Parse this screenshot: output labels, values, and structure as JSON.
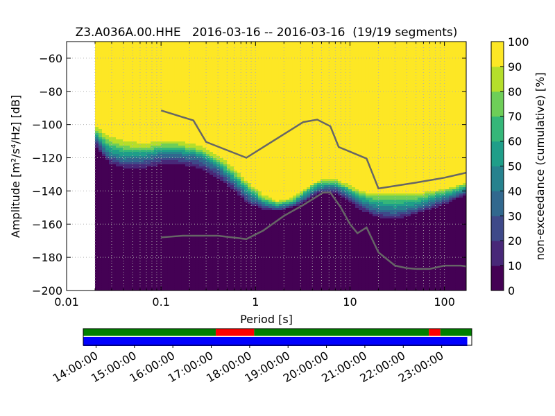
{
  "chart_data": [
    {
      "type": "heatmap",
      "title": "Z3.A036A.00.HHE   2016-03-16 -- 2016-03-16  (19/19 segments)",
      "xlabel": "Period [s]",
      "ylabel": "Amplitude [m²/s⁴/Hz] [dB]",
      "x_scale": "log",
      "xlim": [
        0.01,
        170
      ],
      "ylim": [
        -200,
        -50
      ],
      "x_ticks": [
        0.01,
        0.1,
        1,
        10,
        100
      ],
      "x_tick_labels": [
        "0.01",
        "0.1",
        "1",
        "10",
        "100"
      ],
      "y_ticks": [
        -60,
        -80,
        -100,
        -120,
        -140,
        -160,
        -180,
        -200
      ],
      "y_tick_labels": [
        "−60",
        "−80",
        "−100",
        "−120",
        "−140",
        "−160",
        "−180",
        "−200"
      ],
      "grid": true,
      "data_start_period": 0.02,
      "colormap": [
        "#440154",
        "#482878",
        "#3e4989",
        "#31688e",
        "#26828e",
        "#1f9e89",
        "#35b779",
        "#6ece58",
        "#b5de2b",
        "#fde725"
      ],
      "colorbar": {
        "label": "non-exceedance (cumulative) [%]",
        "ticks": [
          0,
          10,
          20,
          30,
          40,
          50,
          60,
          70,
          80,
          90,
          100
        ],
        "range": [
          0,
          100
        ]
      },
      "psd_contours": [
        {
          "period": [
            0.02,
            0.028,
            0.04,
            0.07,
            0.1,
            0.15,
            0.25,
            0.4,
            0.6,
            0.85,
            1.2,
            1.7,
            2.5,
            3.5,
            4.5,
            5.5,
            7,
            9,
            12,
            16,
            20,
            30,
            50,
            80,
            120,
            170
          ],
          "p99": [
            -99,
            -104,
            -107,
            -109,
            -108,
            -108,
            -110,
            -116,
            -125,
            -134,
            -141,
            -145,
            -143,
            -137,
            -133,
            -132,
            -132,
            -134,
            -138,
            -140,
            -140,
            -140,
            -140,
            -139,
            -137,
            -134
          ],
          "p80": [
            -103,
            -110,
            -113,
            -114,
            -112,
            -112,
            -115,
            -121,
            -129,
            -137,
            -144,
            -147,
            -145,
            -139,
            -135,
            -134,
            -134,
            -137,
            -141,
            -143,
            -143,
            -143,
            -143,
            -141,
            -139,
            -136
          ],
          "p40": [
            -108,
            -118,
            -121,
            -120,
            -118,
            -118,
            -120,
            -126,
            -135,
            -143,
            -148,
            -150,
            -148,
            -143,
            -139,
            -138,
            -138,
            -141,
            -145,
            -149,
            -151,
            -152,
            -150,
            -146,
            -143,
            -140
          ],
          "p10": [
            -112,
            -123,
            -126,
            -126,
            -124,
            -124,
            -126,
            -132,
            -140,
            -148,
            -151,
            -152,
            -150,
            -146,
            -142,
            -141,
            -141,
            -145,
            -150,
            -154,
            -156,
            -157,
            -154,
            -150,
            -146,
            -142
          ],
          "p3": [
            -140,
            -150,
            -156,
            -157,
            -157,
            -157,
            -157,
            -157,
            -157,
            -157,
            -157,
            -157,
            -156,
            -155,
            -155,
            -154,
            -154,
            -156,
            -158,
            -158,
            -158,
            -158,
            -158,
            -158,
            -158,
            -158
          ]
        }
      ],
      "series": [
        {
          "name": "",
          "x": [
            0.1,
            0.22,
            0.3,
            0.8,
            3.2,
            4.5,
            6.2,
            7.6,
            15,
            20,
            50,
            100,
            170
          ],
          "y": [
            -91.5,
            -97.5,
            -110.5,
            -120,
            -98.5,
            -97,
            -101,
            -113.5,
            -120.5,
            -138.5,
            -135,
            -132,
            -129
          ],
          "color": "#666666"
        },
        {
          "name": "",
          "x": [
            0.1,
            0.17,
            0.4,
            0.8,
            1.2,
            2,
            3.2,
            4,
            5.2,
            6.2,
            8,
            10,
            12,
            15,
            20,
            30,
            40,
            50,
            70,
            100,
            150,
            170
          ],
          "y": [
            -168,
            -167,
            -167,
            -169,
            -164,
            -155,
            -148.5,
            -145,
            -141,
            -141,
            -150,
            -160,
            -165.5,
            -162,
            -177,
            -185,
            -186.5,
            -187,
            -187,
            -185,
            -185,
            -185.5
          ],
          "color": "#666666"
        }
      ]
    },
    {
      "type": "timeline",
      "time_labels": [
        "14:00:00",
        "15:00:00",
        "16:00:00",
        "17:00:00",
        "18:00:00",
        "19:00:00",
        "20:00:00",
        "21:00:00",
        "22:00:00",
        "23:00:00"
      ],
      "bars": [
        {
          "name": "",
          "segments": [
            {
              "start": "13:40:00",
              "end": "17:07:00",
              "color": "#008000"
            },
            {
              "start": "17:07:00",
              "end": "18:07:00",
              "color": "#ff0000"
            },
            {
              "start": "18:07:00",
              "end": "22:40:00",
              "color": "#008000"
            },
            {
              "start": "22:40:00",
              "end": "22:58:00",
              "color": "#ff0000"
            },
            {
              "start": "22:58:00",
              "end": "23:47:00",
              "color": "#008000"
            }
          ]
        },
        {
          "name": "",
          "segments": [
            {
              "start": "13:40:00",
              "end": "23:40:00",
              "color": "#0000ff"
            }
          ]
        }
      ]
    }
  ]
}
